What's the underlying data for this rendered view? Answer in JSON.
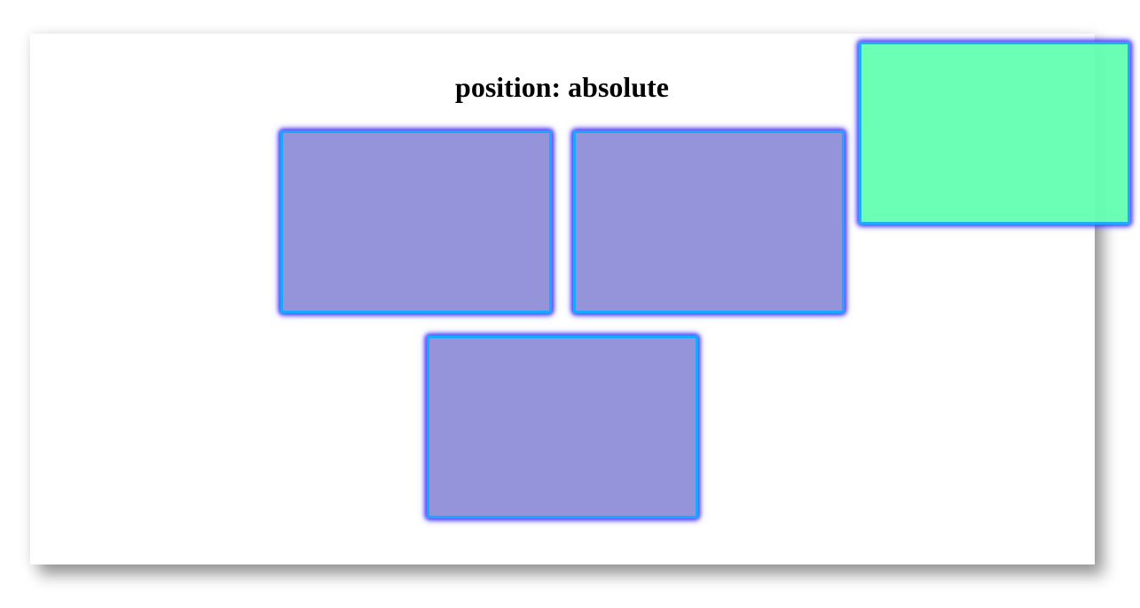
{
  "heading": {
    "text": "position: absolute"
  },
  "colors": {
    "background": "#ffffff",
    "static_box_fill": "#9593d9",
    "absolute_box_fill": "#64ffb2",
    "box_border": "#1aa7ff",
    "box_glow": "#4a3cff"
  },
  "boxes": [
    {
      "id": "box-1",
      "positioning": "static"
    },
    {
      "id": "box-2",
      "positioning": "static"
    },
    {
      "id": "box-3",
      "positioning": "static"
    },
    {
      "id": "box-absolute",
      "positioning": "absolute"
    }
  ]
}
